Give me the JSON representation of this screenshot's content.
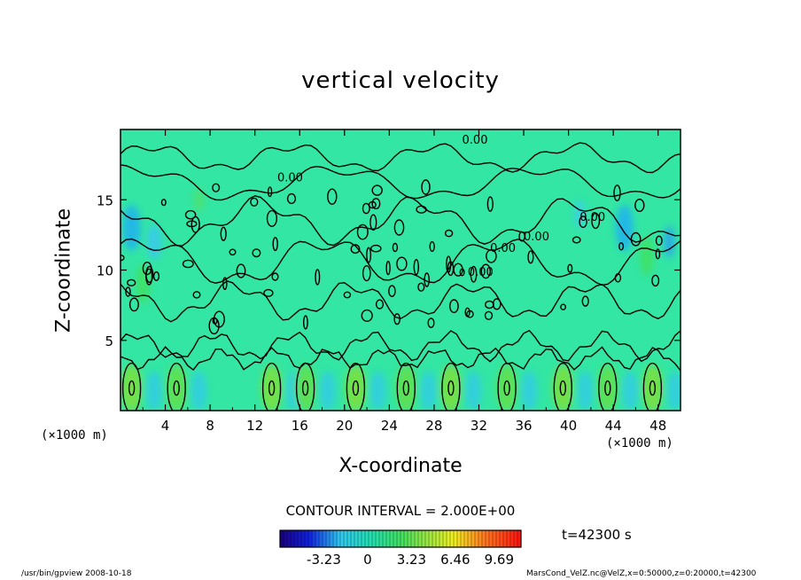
{
  "chart_data": {
    "type": "heatmap",
    "title": "vertical velocity",
    "xlabel": "X-coordinate",
    "ylabel": "Z-coordinate",
    "x_unit": "(×1000 m)",
    "y_unit": "(×1000 m)",
    "xlim": [
      0,
      50
    ],
    "ylim": [
      0,
      20
    ],
    "x_ticks": [
      4,
      8,
      12,
      16,
      20,
      24,
      28,
      32,
      36,
      40,
      44,
      48
    ],
    "y_ticks": [
      5,
      10,
      15
    ],
    "contour_interval_text": "CONTOUR INTERVAL = 2.000E+00",
    "contour_labels": [
      "0.00",
      "0.00",
      "0.00",
      "0.00",
      "0.00",
      "0.00"
    ],
    "colorbar": {
      "ticks": [
        "-3.23",
        "0",
        "3.23",
        "6.46",
        "9.69"
      ],
      "tick_values": [
        -3.23,
        0,
        3.23,
        6.46,
        9.69
      ],
      "range": [
        -6.46,
        11.3
      ]
    },
    "time_text": "t=42300 s",
    "near_surface_cells_x": [
      1,
      5,
      13.5,
      16.5,
      21,
      25.5,
      29.5,
      34.5,
      39.5,
      43.5,
      47.5
    ],
    "grid": false
  },
  "footer": {
    "left": "/usr/bin/gpview   2008-10-18",
    "right": "MarsCond_VelZ.nc@VelZ,x=0:50000,z=0:20000,t=42300"
  }
}
